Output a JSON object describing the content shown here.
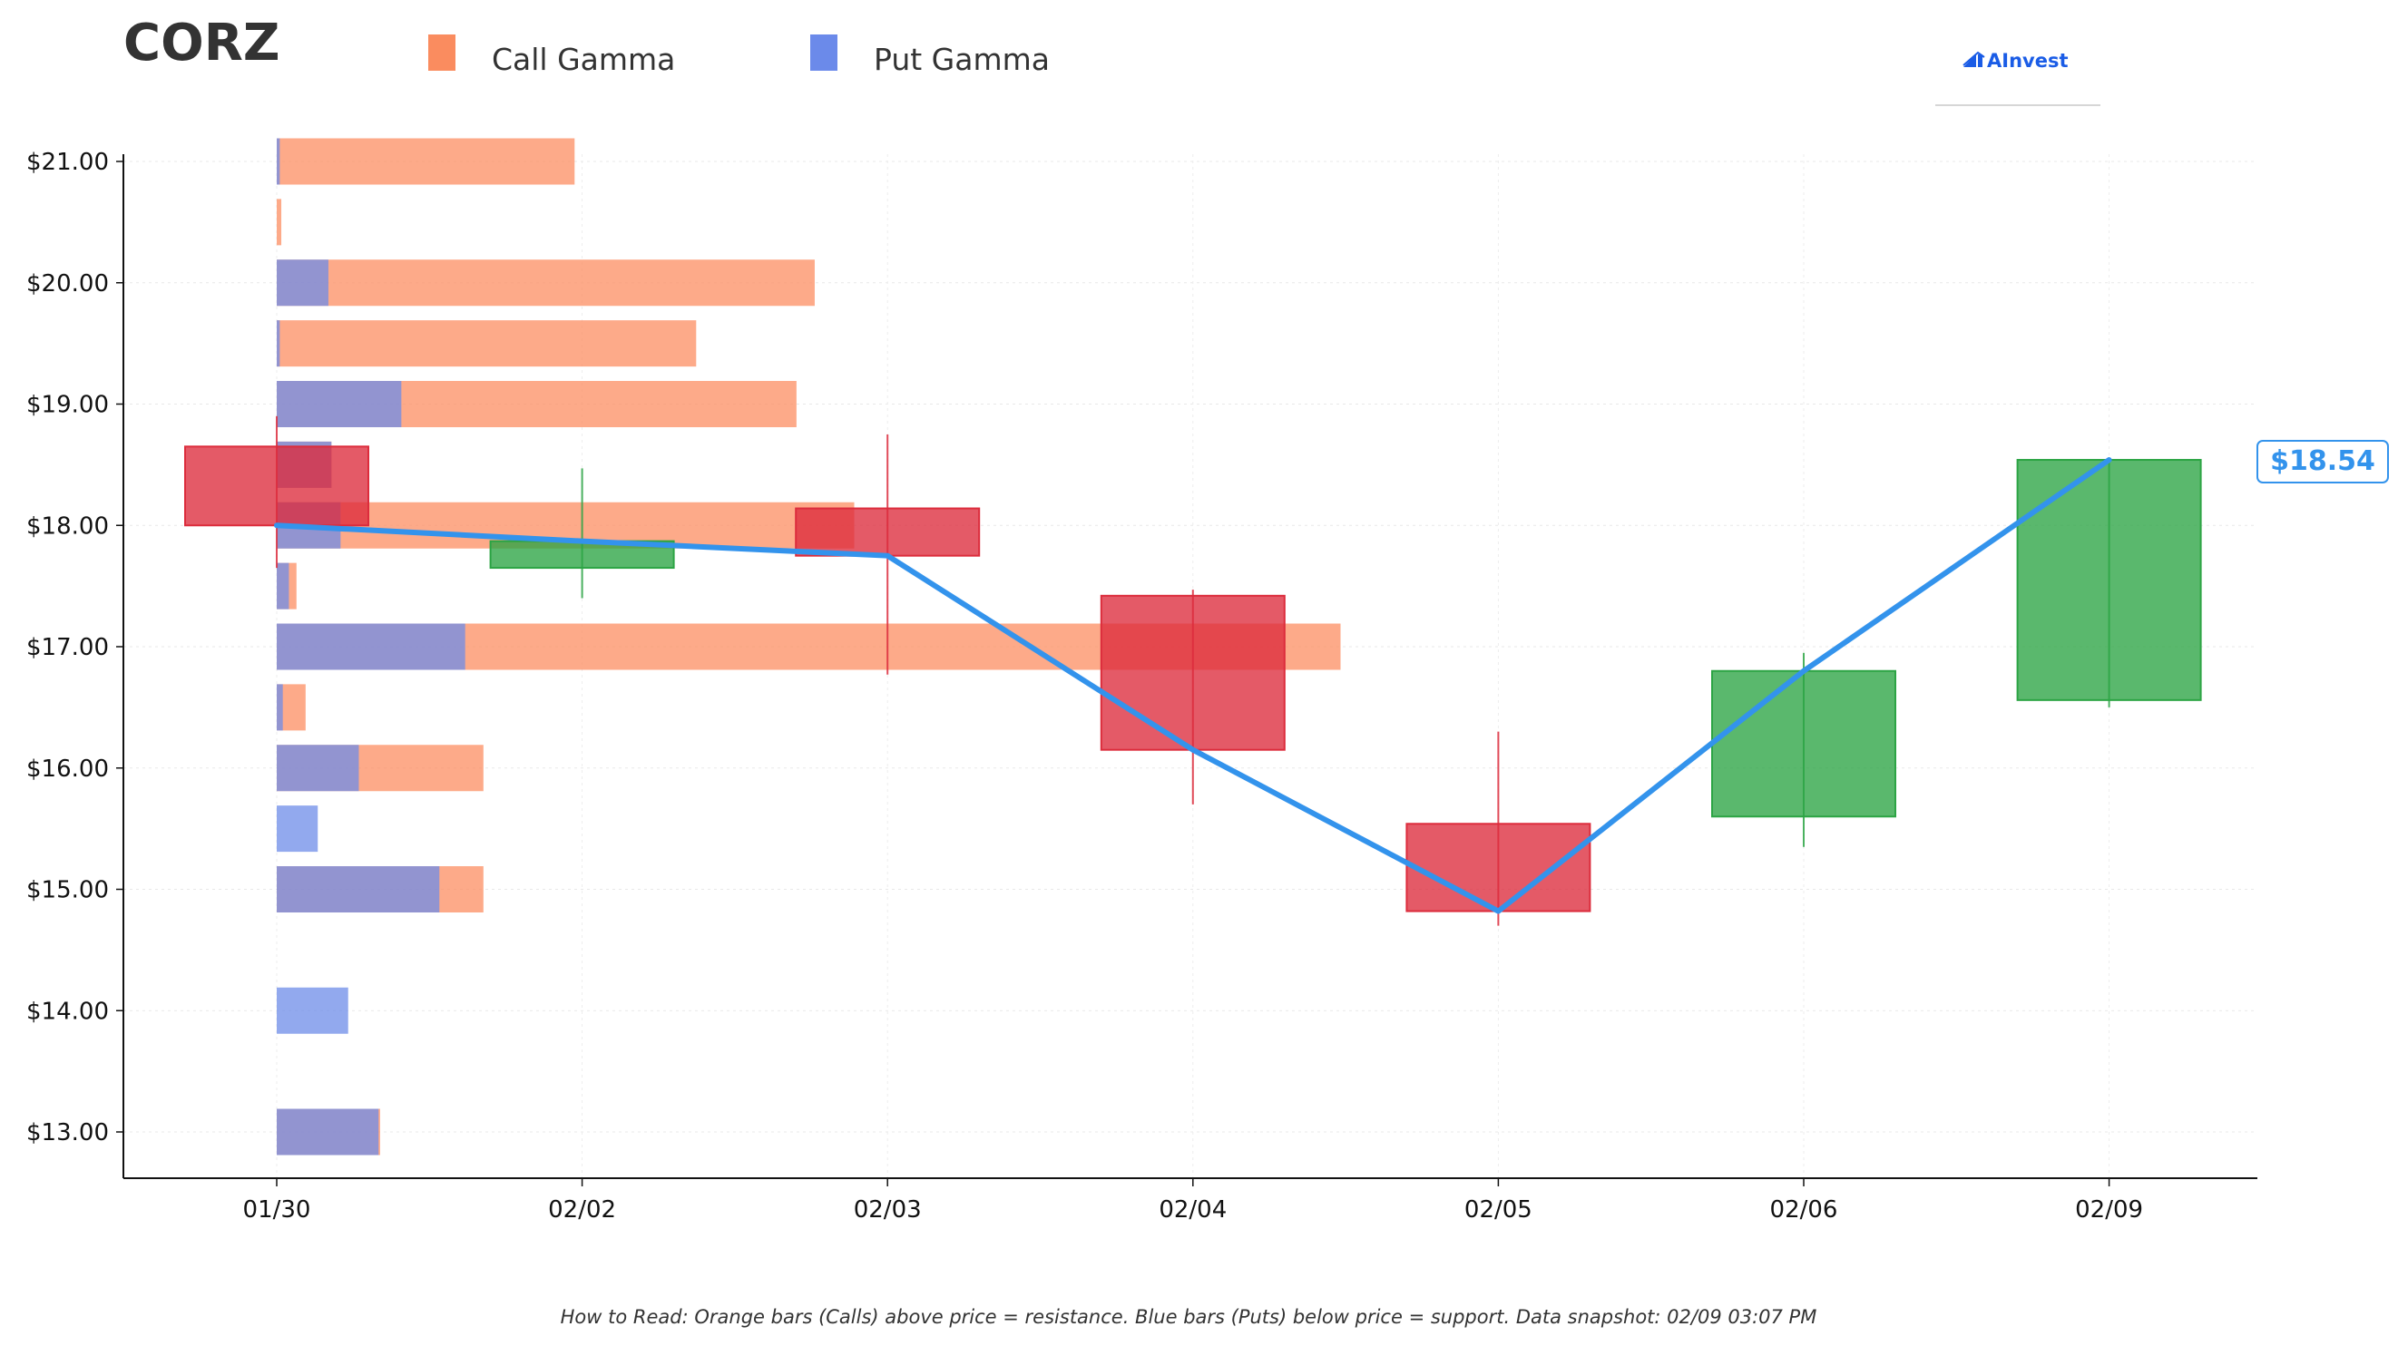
{
  "ticker": "CORZ",
  "brand": {
    "name": "AInvest",
    "color": "#1a5ce6"
  },
  "legend": [
    {
      "label": "Call Gamma",
      "color": "#fa8c5f"
    },
    {
      "label": "Put Gamma",
      "color": "#6b8aea"
    }
  ],
  "current_price_label": "$18.54",
  "footer": "How to Read: Orange bars (Calls) above price = resistance. Blue bars (Puts) below price = support. Data snapshot: 02/09 03:07 PM",
  "colors": {
    "call": "#fc8d62",
    "put": "#6d8ce8",
    "up": "#2ca444",
    "down": "#dc2c3c",
    "price_line": "#3393ec"
  },
  "chart_data": {
    "type": "candlestick",
    "title": "CORZ",
    "x_categories": [
      "01/30",
      "02/02",
      "02/03",
      "02/04",
      "02/05",
      "02/06",
      "02/09"
    ],
    "y_ticks": [
      "$13.00",
      "$14.00",
      "$15.00",
      "$16.00",
      "$17.00",
      "$18.00",
      "$19.00",
      "$20.00",
      "$21.00"
    ],
    "ylim": [
      12.63,
      21.05
    ],
    "grid": true,
    "legend_position": "top",
    "candles": [
      {
        "date": "01/30",
        "open": 18.65,
        "high": 18.9,
        "low": 17.65,
        "close": 18.0
      },
      {
        "date": "02/02",
        "open": 17.65,
        "high": 18.47,
        "low": 17.4,
        "close": 17.87
      },
      {
        "date": "02/03",
        "open": 18.14,
        "high": 18.75,
        "low": 16.77,
        "close": 17.75
      },
      {
        "date": "02/04",
        "open": 17.42,
        "high": 17.47,
        "low": 15.7,
        "close": 16.15
      },
      {
        "date": "02/05",
        "open": 15.54,
        "high": 16.3,
        "low": 14.7,
        "close": 14.82
      },
      {
        "date": "02/06",
        "open": 15.6,
        "high": 16.95,
        "low": 15.35,
        "close": 16.8
      },
      {
        "date": "02/09",
        "open": 16.56,
        "high": 18.55,
        "low": 16.5,
        "close": 18.54
      }
    ],
    "price_line": [
      18.0,
      17.87,
      17.75,
      16.15,
      14.82,
      16.8,
      18.54
    ],
    "gamma_strikes": [
      {
        "strike": 21.0,
        "call": 0.98,
        "put": 0.01
      },
      {
        "strike": 20.5,
        "call": 0.015,
        "put": 0.0
      },
      {
        "strike": 20.0,
        "call": 1.77,
        "put": 0.17
      },
      {
        "strike": 19.5,
        "call": 1.38,
        "put": 0.01
      },
      {
        "strike": 19.0,
        "call": 1.71,
        "put": 0.41
      },
      {
        "strike": 18.5,
        "call": 0.18,
        "put": 0.18
      },
      {
        "strike": 18.0,
        "call": 1.9,
        "put": 0.21
      },
      {
        "strike": 17.5,
        "call": 0.065,
        "put": 0.04
      },
      {
        "strike": 17.0,
        "call": 3.5,
        "put": 0.62
      },
      {
        "strike": 16.5,
        "call": 0.095,
        "put": 0.02
      },
      {
        "strike": 16.0,
        "call": 0.68,
        "put": 0.27
      },
      {
        "strike": 15.5,
        "call": 0.0,
        "put": 0.135
      },
      {
        "strike": 15.0,
        "call": 0.68,
        "put": 0.535
      },
      {
        "strike": 14.0,
        "call": 0.0,
        "put": 0.235
      },
      {
        "strike": 13.0,
        "call": 0.34,
        "put": 0.335
      }
    ]
  }
}
